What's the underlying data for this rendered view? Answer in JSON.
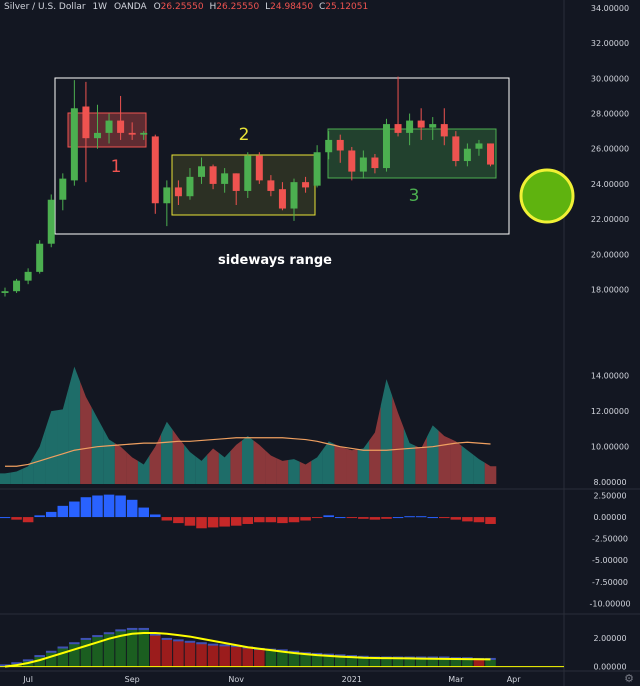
{
  "header": {
    "title": "Silver / U.S. Dollar",
    "interval": "1W",
    "broker": "OANDA",
    "o_key": "O",
    "o_val": "26.25550",
    "h_key": "H",
    "h_val": "26.25550",
    "l_key": "L",
    "l_val": "24.98450",
    "c_key": "C",
    "c_val": "25.12051"
  },
  "annotations": {
    "box1_label": "1",
    "box2_label": "2",
    "box3_label": "3",
    "range_label": "sideways range"
  },
  "colors": {
    "up": "#4caf50",
    "down": "#ef5350",
    "background": "#131722",
    "box1": "#ef5350",
    "box2": "#e8e337",
    "box3": "#4caf50",
    "circle": "#5fb30f"
  },
  "chart_data": [
    {
      "type": "candlestick",
      "title": "",
      "price_axis_labels": [
        "34.00000",
        "32.00000",
        "30.00000",
        "28.00000",
        "26.00000",
        "24.00000",
        "22.00000",
        "20.00000",
        "18.00000"
      ],
      "ylim": [
        17.4,
        34.0
      ],
      "x_tick_labels": [
        "Jul",
        "Sep",
        "Nov",
        "2021",
        "Mar",
        "Apr"
      ],
      "candles": [
        {
          "o": 17.8,
          "h": 18.1,
          "l": 17.6,
          "c": 17.9
        },
        {
          "o": 17.9,
          "h": 18.6,
          "l": 17.8,
          "c": 18.5
        },
        {
          "o": 18.5,
          "h": 19.2,
          "l": 18.3,
          "c": 19.0
        },
        {
          "o": 19.0,
          "h": 20.8,
          "l": 18.9,
          "c": 20.6
        },
        {
          "o": 20.6,
          "h": 23.4,
          "l": 20.4,
          "c": 23.1
        },
        {
          "o": 23.1,
          "h": 24.6,
          "l": 22.5,
          "c": 24.3
        },
        {
          "o": 24.2,
          "h": 29.9,
          "l": 23.9,
          "c": 28.3
        },
        {
          "o": 28.4,
          "h": 29.8,
          "l": 24.1,
          "c": 26.6
        },
        {
          "o": 26.6,
          "h": 28.5,
          "l": 26.0,
          "c": 26.9
        },
        {
          "o": 26.9,
          "h": 28.0,
          "l": 26.3,
          "c": 27.6
        },
        {
          "o": 27.6,
          "h": 29.0,
          "l": 26.5,
          "c": 26.9
        },
        {
          "o": 26.9,
          "h": 27.5,
          "l": 26.5,
          "c": 26.8
        },
        {
          "o": 26.8,
          "h": 27.0,
          "l": 26.5,
          "c": 26.9
        },
        {
          "o": 26.7,
          "h": 26.8,
          "l": 22.3,
          "c": 22.9
        },
        {
          "o": 22.9,
          "h": 24.2,
          "l": 21.6,
          "c": 23.8
        },
        {
          "o": 23.8,
          "h": 24.2,
          "l": 22.8,
          "c": 23.3
        },
        {
          "o": 23.3,
          "h": 24.9,
          "l": 23.1,
          "c": 24.4
        },
        {
          "o": 24.4,
          "h": 25.5,
          "l": 24.0,
          "c": 25.0
        },
        {
          "o": 25.0,
          "h": 25.1,
          "l": 23.7,
          "c": 24.0
        },
        {
          "o": 24.0,
          "h": 24.9,
          "l": 23.5,
          "c": 24.6
        },
        {
          "o": 24.6,
          "h": 24.6,
          "l": 22.8,
          "c": 23.6
        },
        {
          "o": 23.6,
          "h": 25.8,
          "l": 23.2,
          "c": 25.6
        },
        {
          "o": 25.6,
          "h": 25.8,
          "l": 24.0,
          "c": 24.2
        },
        {
          "o": 24.2,
          "h": 24.5,
          "l": 23.3,
          "c": 23.6
        },
        {
          "o": 23.7,
          "h": 24.1,
          "l": 22.5,
          "c": 22.6
        },
        {
          "o": 22.6,
          "h": 24.3,
          "l": 21.9,
          "c": 24.1
        },
        {
          "o": 24.1,
          "h": 24.4,
          "l": 23.5,
          "c": 23.8
        },
        {
          "o": 23.9,
          "h": 26.2,
          "l": 23.8,
          "c": 25.8
        },
        {
          "o": 25.8,
          "h": 27.0,
          "l": 25.4,
          "c": 26.5
        },
        {
          "o": 26.5,
          "h": 26.8,
          "l": 25.2,
          "c": 25.9
        },
        {
          "o": 25.9,
          "h": 26.1,
          "l": 24.2,
          "c": 24.7
        },
        {
          "o": 24.7,
          "h": 25.9,
          "l": 24.3,
          "c": 25.5
        },
        {
          "o": 25.5,
          "h": 25.7,
          "l": 24.6,
          "c": 24.9
        },
        {
          "o": 24.9,
          "h": 27.7,
          "l": 24.7,
          "c": 27.4
        },
        {
          "o": 27.4,
          "h": 30.1,
          "l": 26.7,
          "c": 26.9
        },
        {
          "o": 26.9,
          "h": 28.0,
          "l": 26.2,
          "c": 27.6
        },
        {
          "o": 27.6,
          "h": 28.3,
          "l": 26.5,
          "c": 27.2
        },
        {
          "o": 27.2,
          "h": 27.8,
          "l": 26.5,
          "c": 27.4
        },
        {
          "o": 27.4,
          "h": 28.3,
          "l": 26.2,
          "c": 26.7
        },
        {
          "o": 26.7,
          "h": 27.0,
          "l": 25.0,
          "c": 25.3
        },
        {
          "o": 25.3,
          "h": 26.3,
          "l": 25.0,
          "c": 26.0
        },
        {
          "o": 26.0,
          "h": 26.5,
          "l": 25.6,
          "c": 26.3
        },
        {
          "o": 26.3,
          "h": 26.3,
          "l": 25.0,
          "c": 25.1
        }
      ]
    },
    {
      "type": "area",
      "title": "",
      "axis_labels": [
        "14.00000",
        "12.00000",
        "10.00000",
        "8.00000"
      ],
      "ylim": [
        7.9,
        16.0
      ],
      "values": [
        8.5,
        8.6,
        8.9,
        10.0,
        12.0,
        12.1,
        14.5,
        12.8,
        11.6,
        10.4,
        10.0,
        9.4,
        9.0,
        10.0,
        11.4,
        10.5,
        9.7,
        9.2,
        9.9,
        9.4,
        10.1,
        10.6,
        10.1,
        9.5,
        9.2,
        9.3,
        9.0,
        9.4,
        10.3,
        10.0,
        9.8,
        9.9,
        10.8,
        13.8,
        11.9,
        10.2,
        9.9,
        11.2,
        10.6,
        10.3,
        9.8,
        9.3,
        8.9
      ],
      "average": [
        8.9,
        8.9,
        9.0,
        9.2,
        9.4,
        9.6,
        9.8,
        9.9,
        10.0,
        10.05,
        10.1,
        10.15,
        10.2,
        10.2,
        10.25,
        10.3,
        10.3,
        10.35,
        10.4,
        10.45,
        10.5,
        10.5,
        10.5,
        10.5,
        10.5,
        10.45,
        10.4,
        10.3,
        10.15,
        10.0,
        9.9,
        9.8,
        9.8,
        9.8,
        9.85,
        9.9,
        9.95,
        10.0,
        10.1,
        10.2,
        10.25,
        10.2,
        10.15
      ]
    },
    {
      "type": "bar",
      "title": "",
      "axis_labels": [
        "2.50000",
        "0.00000",
        "-2.50000",
        "-5.00000",
        "-7.50000",
        "-10.00000"
      ],
      "ylim": [
        -11.0,
        3.6
      ],
      "values": [
        0.0,
        -0.3,
        -0.6,
        0.2,
        0.6,
        1.3,
        1.8,
        2.3,
        2.5,
        2.6,
        2.5,
        2.0,
        1.1,
        0.3,
        -0.4,
        -0.7,
        -1.0,
        -1.3,
        -1.2,
        -1.1,
        -1.0,
        -0.8,
        -0.6,
        -0.6,
        -0.7,
        -0.6,
        -0.4,
        -0.1,
        0.2,
        0.0,
        -0.1,
        -0.2,
        -0.3,
        -0.2,
        0.0,
        0.1,
        0.1,
        0.0,
        -0.1,
        -0.3,
        -0.5,
        -0.6,
        -0.8
      ]
    },
    {
      "type": "bar",
      "title": "",
      "axis_labels": [
        "2.00000",
        "0.00000"
      ],
      "ylim": [
        -0.1,
        3.4
      ],
      "values": [
        0.05,
        0.2,
        0.4,
        0.7,
        1.0,
        1.3,
        1.6,
        1.9,
        2.1,
        2.3,
        2.5,
        2.6,
        2.6,
        2.2,
        1.9,
        1.8,
        1.7,
        1.6,
        1.5,
        1.45,
        1.4,
        1.3,
        1.2,
        1.15,
        1.1,
        1.0,
        0.9,
        0.85,
        0.8,
        0.75,
        0.7,
        0.65,
        0.6,
        0.6,
        0.6,
        0.6,
        0.6,
        0.6,
        0.6,
        0.55,
        0.55,
        0.5,
        0.5
      ],
      "signal": [
        0.0,
        0.1,
        0.25,
        0.45,
        0.7,
        0.95,
        1.2,
        1.45,
        1.7,
        1.95,
        2.15,
        2.3,
        2.35,
        2.35,
        2.3,
        2.2,
        2.1,
        1.95,
        1.8,
        1.65,
        1.5,
        1.35,
        1.25,
        1.15,
        1.05,
        0.95,
        0.87,
        0.8,
        0.75,
        0.7,
        0.66,
        0.62,
        0.6,
        0.59,
        0.58,
        0.57,
        0.56,
        0.55,
        0.54,
        0.53,
        0.52,
        0.51,
        0.5
      ]
    }
  ]
}
